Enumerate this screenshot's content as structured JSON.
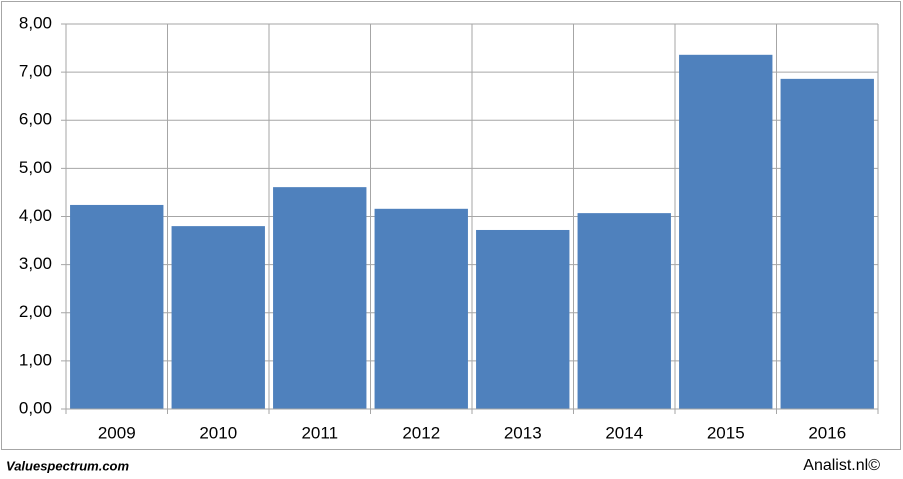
{
  "chart_data": {
    "type": "bar",
    "categories": [
      "2009",
      "2010",
      "2011",
      "2012",
      "2013",
      "2014",
      "2015",
      "2016"
    ],
    "values": [
      4.24,
      3.8,
      4.61,
      4.16,
      3.72,
      4.07,
      7.36,
      6.86
    ],
    "color": "#4f81bd",
    "ylim": [
      0,
      8
    ],
    "yticks": [
      {
        "value": 0,
        "label": "0,00"
      },
      {
        "value": 1,
        "label": "1,00"
      },
      {
        "value": 2,
        "label": "2,00"
      },
      {
        "value": 3,
        "label": "3,00"
      },
      {
        "value": 4,
        "label": "4,00"
      },
      {
        "value": 5,
        "label": "5,00"
      },
      {
        "value": 6,
        "label": "6,00"
      },
      {
        "value": 7,
        "label": "7,00"
      },
      {
        "value": 8,
        "label": "8,00"
      }
    ],
    "grid": true,
    "source": "Valuespectrum.com",
    "credit": "Analist.nl©"
  }
}
